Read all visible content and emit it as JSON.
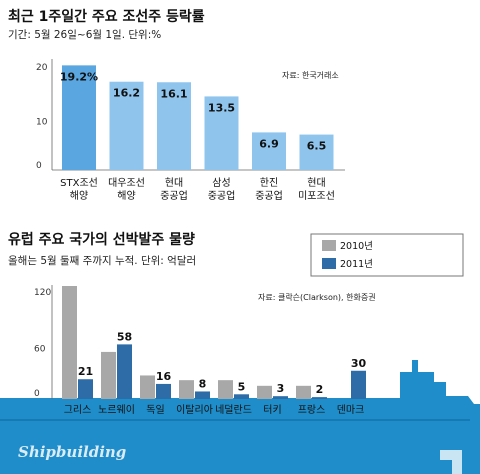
{
  "chart_data": [
    {
      "type": "bar",
      "title": "최근 1주일간 주요 조선주 등락률",
      "subtitle": "기간: 5월 26일~6월 1일. 단위:%",
      "source": "자료: 한국거래소",
      "categories": [
        [
          "STX조선",
          "해양"
        ],
        [
          "대우조선",
          "해양"
        ],
        [
          "현대",
          "중공업"
        ],
        [
          "삼성",
          "중공업"
        ],
        [
          "한진",
          "중공업"
        ],
        [
          "현대",
          "미포조선"
        ]
      ],
      "values": [
        19.2,
        16.2,
        16.1,
        13.5,
        6.9,
        6.5
      ],
      "value_labels": [
        "19.2%",
        "16.2",
        "16.1",
        "13.5",
        "6.9",
        "6.5"
      ],
      "yticks": [
        "20",
        "10",
        "0"
      ],
      "ylim": [
        0,
        20
      ],
      "colors": {
        "bar": "#8fc4ec",
        "bar_highlight": "#5aa6e0"
      }
    },
    {
      "type": "bar",
      "title": "유럽 주요 국가의 선박발주 물량",
      "subtitle": "올해는 5월 둘째 주까지 누적. 단위: 억달러",
      "source": "자료: 클락슨(Clarkson), 한화증권",
      "categories": [
        "그리스",
        "노르웨이",
        "독일",
        "이탈리아",
        "네덜란드",
        "터키",
        "프랑스",
        "덴마크"
      ],
      "series": [
        {
          "name": "2010년",
          "values": [
            120,
            50,
            25,
            20,
            20,
            14,
            14,
            0
          ]
        },
        {
          "name": "2011년",
          "values": [
            21,
            58,
            16,
            8,
            5,
            3,
            2,
            30
          ]
        }
      ],
      "value_labels": [
        "21",
        "58",
        "16",
        "8",
        "5",
        "3",
        "2",
        "30"
      ],
      "yticks": [
        "120",
        "60",
        "0"
      ],
      "ylim": [
        0,
        120
      ],
      "colors": {
        "2010년": "#a8a8a8",
        "2011년": "#2e6ca8"
      }
    }
  ],
  "ship_label": "Shipbuilding",
  "colors": {
    "ship": "#1f8dc9",
    "ship_dark": "#1779b3"
  }
}
